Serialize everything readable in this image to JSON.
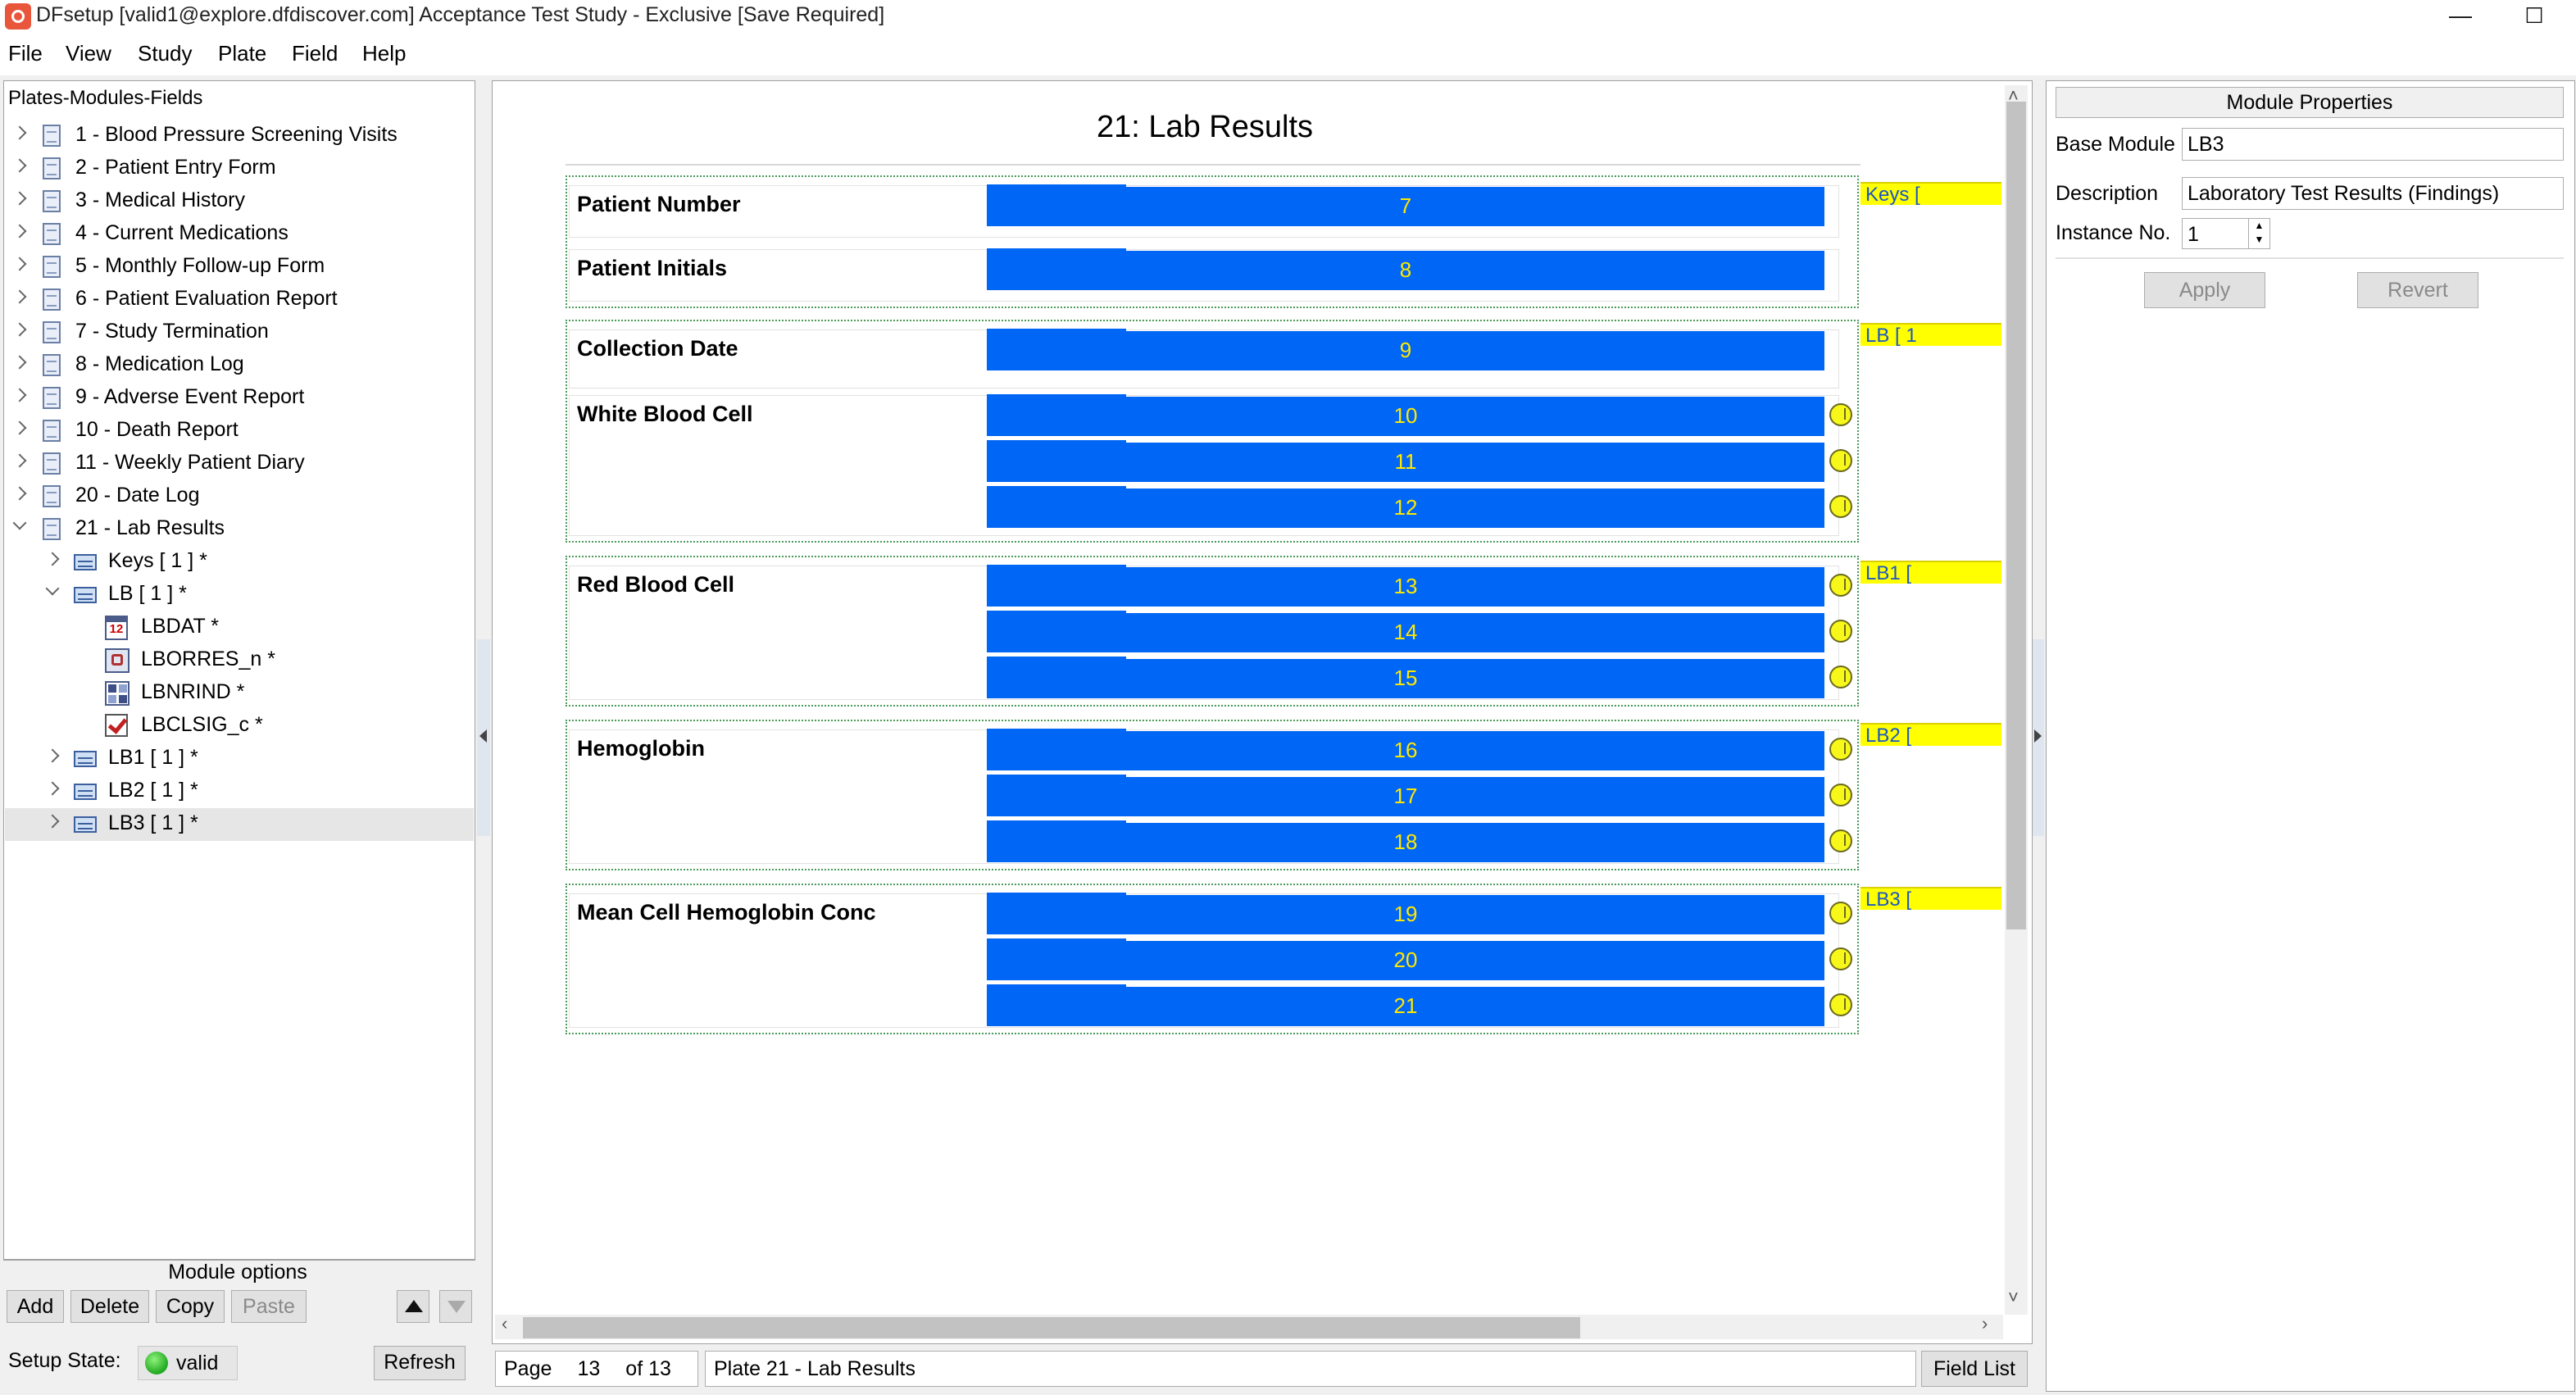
{
  "window": {
    "title": "DFsetup [valid1@explore.dfdiscover.com] Acceptance Test Study - Exclusive [Save Required]",
    "controls": {
      "minimize": "—",
      "maximize": "☐",
      "close": "✕"
    }
  },
  "menu": [
    "File",
    "View",
    "Study",
    "Plate",
    "Field",
    "Help"
  ],
  "tree": {
    "header": "Plates-Modules-Fields",
    "plates": [
      "1 - Blood Pressure Screening Visits",
      "2 - Patient Entry Form",
      "3 - Medical History",
      "4 - Current Medications",
      "5 - Monthly Follow-up Form",
      "6 - Patient Evaluation Report",
      "7 - Study Termination",
      "8 - Medication Log",
      "9 - Adverse Event Report",
      "10 - Death Report",
      "11 - Weekly Patient Diary",
      "20 - Date Log",
      "21 - Lab Results"
    ],
    "modules_top": [
      "Keys [ 1 ] *",
      "LB [ 1 ] *"
    ],
    "fields": [
      "LBDAT *",
      "LBORRES_n *",
      "LBNRIND *",
      "LBCLSIG_c *"
    ],
    "modules_bottom": [
      "LB1 [ 1 ] *",
      "LB2 [ 1 ] *",
      "LB3 [ 1 ] *"
    ],
    "icons": {
      "plate": "document-icon",
      "module": "module-icon",
      "date": "calendar-icon",
      "number": "number-field-icon",
      "choice": "choice-grid-icon",
      "check": "checkbox-icon"
    }
  },
  "module_options": {
    "label": "Module options",
    "buttons": [
      "Add",
      "Delete",
      "Copy",
      "Paste"
    ],
    "setup_state_label": "Setup State:",
    "setup_state_value": "valid",
    "refresh": "Refresh"
  },
  "canvas": {
    "plate_title": "21: Lab Results",
    "fields": [
      {
        "label": "Patient Number",
        "value": "7"
      },
      {
        "label": "Patient Initials",
        "value": "8"
      },
      {
        "label": "Collection Date",
        "value": "9"
      },
      {
        "label": "White Blood Cell",
        "values": [
          "10",
          "11",
          "12"
        ]
      },
      {
        "label": "Red Blood Cell",
        "values": [
          "13",
          "14",
          "15"
        ]
      },
      {
        "label": "Hemoglobin",
        "values": [
          "16",
          "17",
          "18"
        ]
      },
      {
        "label": "Mean Cell Hemoglobin Conc",
        "values": [
          "19",
          "20",
          "21"
        ]
      }
    ],
    "module_tags": [
      "Keys [",
      "LB [ 1",
      "LB1 [",
      "LB2 [",
      "LB3 ["
    ],
    "field_color": "#0066f5",
    "field_text_color": "#ffe800",
    "tag_color": "#ffff00"
  },
  "status": {
    "page_label": "Page",
    "page_number": "13",
    "page_total": "of 13",
    "plate_label": "Plate 21 - Lab Results",
    "field_list": "Field List"
  },
  "properties": {
    "header": "Module Properties",
    "base_module_label": "Base Module",
    "base_module_value": "LB3",
    "description_label": "Description",
    "description_value": "Laboratory Test Results (Findings)",
    "instance_label": "Instance No.",
    "instance_value": "1",
    "apply": "Apply",
    "revert": "Revert"
  }
}
